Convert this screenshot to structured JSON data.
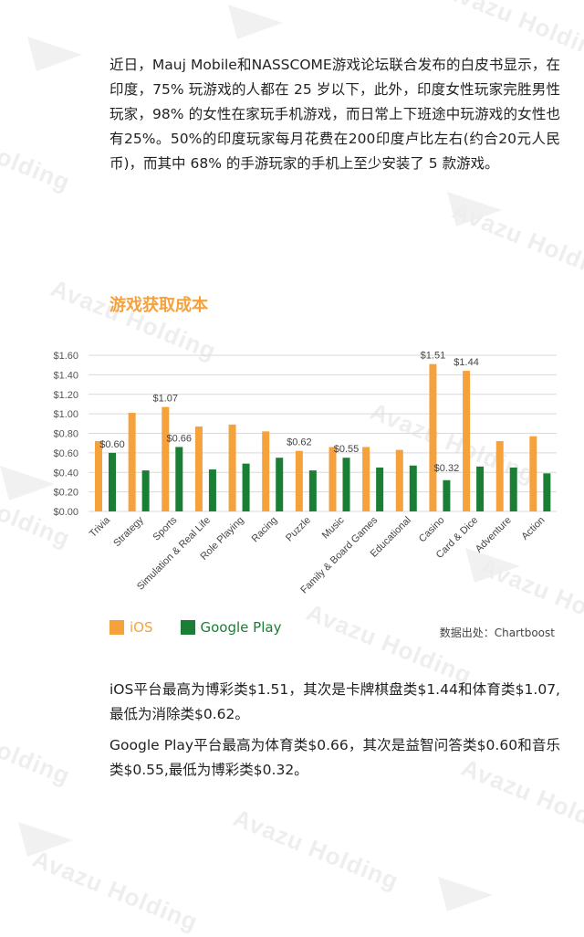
{
  "intro_text": "近日，Mauj  Mobile和NASSCOME游戏论坛联合发布的白皮书显示，在印度，75% 玩游戏的人都在 25 岁以下，此外，印度女性玩家完胜男性玩家，98%  的女性在家玩手机游戏，而日常上下班途中玩游戏的女性也有25%。50%的印度玩家每月花费在200印度卢比左右(约合20元人民币)，而其中 68% 的手游玩家的手机上至少安装了 5 款游戏。",
  "watermark_text": "Avazu Holding",
  "chart_data": {
    "type": "bar",
    "title": "游戏获取成本",
    "categories": [
      "Trivia",
      "Strategy",
      "Sports",
      "Simulation & Real Life",
      "Role Playing",
      "Racing",
      "Puzzle",
      "Music",
      "Family & Board Games",
      "Educational",
      "Casino",
      "Card & Dice",
      "Adventure",
      "Action"
    ],
    "series": [
      {
        "name": "iOS",
        "color": "#f5a23d",
        "values": [
          0.72,
          1.01,
          1.07,
          0.87,
          0.89,
          0.82,
          0.62,
          0.66,
          0.66,
          0.63,
          1.51,
          1.44,
          0.72,
          0.77
        ]
      },
      {
        "name": "Google Play",
        "color": "#1b7e35",
        "values": [
          0.6,
          0.42,
          0.66,
          0.43,
          0.49,
          0.55,
          0.42,
          0.55,
          0.45,
          0.47,
          0.32,
          0.46,
          0.45,
          0.39
        ]
      }
    ],
    "data_labels": [
      {
        "series": 1,
        "index": 0,
        "text": "$0.60"
      },
      {
        "series": 0,
        "index": 2,
        "text": "$1.07"
      },
      {
        "series": 1,
        "index": 2,
        "text": "$0.66"
      },
      {
        "series": 0,
        "index": 6,
        "text": "$0.62"
      },
      {
        "series": 1,
        "index": 7,
        "text": "$0.55"
      },
      {
        "series": 0,
        "index": 10,
        "text": "$1.51"
      },
      {
        "series": 1,
        "index": 10,
        "text": "$0.32"
      },
      {
        "series": 0,
        "index": 11,
        "text": "$1.44"
      }
    ],
    "yticks": [
      "$0.00",
      "$0.20",
      "$0.40",
      "$0.60",
      "$0.80",
      "$1.00",
      "$1.20",
      "$1.40",
      "$1.60"
    ],
    "ylim": [
      0,
      1.6
    ],
    "grid": true,
    "legend_position": "bottom-left",
    "xlabel": "",
    "ylabel": ""
  },
  "legend": {
    "ios_label": "iOS",
    "gp_label": "Google Play"
  },
  "source_text": "数据出处：Chartboost",
  "summary_1": "iOS平台最高为博彩类$1.51，其次是卡牌棋盘类$1.44和体育类$1.07,最低为消除类$0.62。",
  "summary_2": "Google  Play平台最高为体育类$0.66，其次是益智问答类$0.60和音乐类$0.55,最低为博彩类$0.32。"
}
